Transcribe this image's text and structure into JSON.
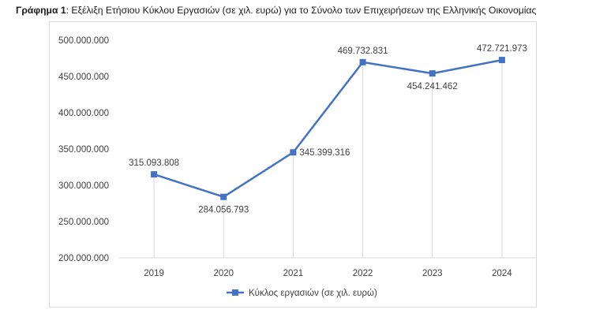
{
  "caption": {
    "label": "Γράφημα 1",
    "text": ": Εξέλιξη Ετήσιου Κύκλου Εργασιών (σε χιλ. ευρώ) για το Σύνολο των Επιχειρήσεων της Ελληνικής Οικονομίας"
  },
  "chart_data": {
    "type": "line",
    "title": "",
    "xlabel": "",
    "ylabel": "",
    "categories": [
      "2019",
      "2020",
      "2021",
      "2022",
      "2023",
      "2024"
    ],
    "series": [
      {
        "name": "Κύκλος εργασιών (σε χιλ. ευρώ)",
        "values": [
          315093808,
          284056793,
          345399316,
          469732831,
          454241462,
          472721973
        ],
        "data_labels": [
          "315.093.808",
          "284.056.793",
          "345.399.316",
          "469.732.831",
          "454.241.462",
          "472.721.973"
        ],
        "label_positions": [
          "above",
          "below",
          "right",
          "above",
          "below",
          "above"
        ],
        "color": "#4472c4",
        "marker": "square"
      }
    ],
    "ylim": [
      200000000,
      500000000
    ],
    "yticks": [
      200000000,
      250000000,
      300000000,
      350000000,
      400000000,
      450000000,
      500000000
    ],
    "ytick_labels": [
      "200.000.000",
      "250.000.000",
      "300.000.000",
      "350.000.000",
      "400.000.000",
      "450.000.000",
      "500.000.000"
    ],
    "vertical_drop_lines": true,
    "drop_line_color": "#d9d9d9",
    "grid": false,
    "legend": "bottom"
  }
}
